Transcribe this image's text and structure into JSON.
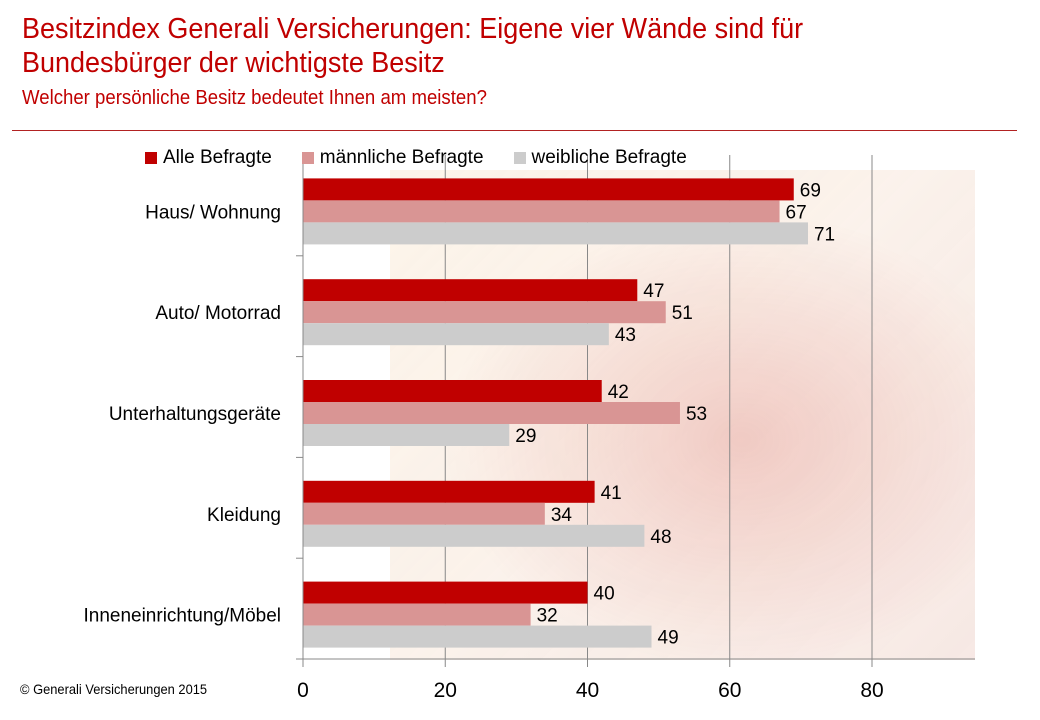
{
  "header": {
    "title": "Besitzindex Generali Versicherungen: Eigene vier Wände sind für Bundesbürger der wichtigste Besitz",
    "subtitle": "Welcher persönliche Besitz bedeutet Ihnen am meisten?"
  },
  "footer": {
    "copyright": "© Generali Versicherungen 2015"
  },
  "chart_data": {
    "type": "bar",
    "orientation": "horizontal",
    "title": "Besitzindex Generali Versicherungen: Eigene vier Wände sind für Bundesbürger der wichtigste Besitz",
    "subtitle": "Welcher persönliche Besitz bedeutet Ihnen am meisten?",
    "xlabel": "",
    "ylabel": "",
    "categories": [
      "Haus/ Wohnung",
      "Auto/ Motorrad",
      "Unterhaltungsgeräte",
      "Kleidung",
      "Inneneinrichtung/Möbel"
    ],
    "series": [
      {
        "name": "Alle Befragte",
        "color": "#c00000",
        "values": [
          69,
          47,
          42,
          41,
          40
        ]
      },
      {
        "name": "männliche Befragte",
        "color": "#d99594",
        "values": [
          67,
          51,
          53,
          34,
          32
        ]
      },
      {
        "name": "weibliche Befragte",
        "color": "#cccccc",
        "values": [
          71,
          43,
          29,
          48,
          49
        ]
      }
    ],
    "xlim": [
      0,
      80
    ],
    "xticks": [
      "0",
      "20",
      "40",
      "60",
      "80"
    ],
    "grid": true,
    "legend_position": "top",
    "data_labels": true
  }
}
